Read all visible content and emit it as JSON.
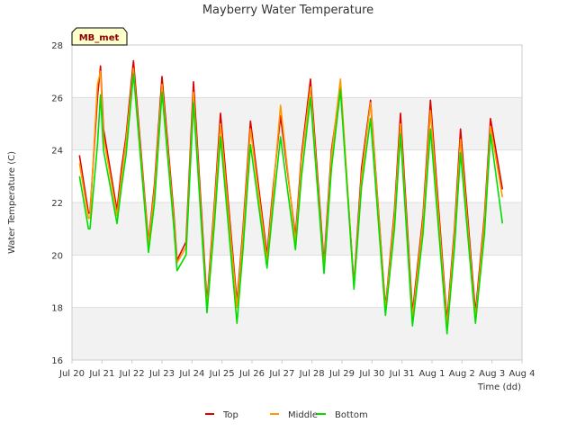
{
  "chart_data": {
    "type": "line",
    "title": "Mayberry Water Temperature",
    "xlabel": "Time (dd)",
    "ylabel": "Water Temperature (C)",
    "site_label": "MB_met",
    "xlim": [
      0,
      15
    ],
    "ylim": [
      16,
      28
    ],
    "grid": true,
    "legend_position": "bottom",
    "x_ticks": [
      {
        "x": 0,
        "label": "Jul 20"
      },
      {
        "x": 1,
        "label": "Jul 21"
      },
      {
        "x": 2,
        "label": "Jul 22"
      },
      {
        "x": 3,
        "label": "Jul 23"
      },
      {
        "x": 4,
        "label": "Jul 24"
      },
      {
        "x": 5,
        "label": "Jul 25"
      },
      {
        "x": 6,
        "label": "Jul 26"
      },
      {
        "x": 7,
        "label": "Jul 27"
      },
      {
        "x": 8,
        "label": "Jul 28"
      },
      {
        "x": 9,
        "label": "Jul 29"
      },
      {
        "x": 10,
        "label": "Jul 30"
      },
      {
        "x": 11,
        "label": "Jul 31"
      },
      {
        "x": 12,
        "label": "Aug 1"
      },
      {
        "x": 13,
        "label": "Aug 2"
      },
      {
        "x": 14,
        "label": "Aug 3"
      },
      {
        "x": 15,
        "label": "Aug 4"
      }
    ],
    "y_ticks": [
      16,
      18,
      20,
      22,
      24,
      26,
      28
    ],
    "series": [
      {
        "name": "Top",
        "color": "#dd0000",
        "x": [
          0.25,
          0.55,
          0.6,
          0.85,
          0.95,
          1.05,
          1.5,
          1.65,
          1.8,
          2.05,
          2.55,
          2.75,
          3.0,
          3.4,
          3.5,
          3.8,
          4.05,
          4.5,
          4.75,
          4.95,
          5.5,
          5.7,
          5.95,
          6.5,
          6.7,
          6.95,
          7.45,
          7.65,
          7.95,
          8.4,
          8.65,
          8.95,
          9.4,
          9.65,
          9.95,
          10.45,
          10.75,
          10.95,
          11.35,
          11.7,
          11.95,
          12.5,
          12.75,
          12.95,
          13.45,
          13.75,
          13.95,
          14.35
        ],
        "y": [
          23.8,
          21.6,
          21.6,
          26.0,
          27.2,
          24.8,
          21.7,
          23.3,
          24.5,
          27.4,
          20.5,
          22.7,
          26.8,
          21.5,
          19.8,
          20.5,
          26.6,
          18.2,
          22.0,
          25.4,
          18.2,
          21.0,
          25.1,
          20.0,
          22.5,
          25.3,
          20.7,
          23.8,
          26.7,
          19.7,
          24.0,
          26.4,
          18.9,
          23.3,
          25.9,
          18.0,
          21.7,
          25.4,
          17.8,
          21.5,
          25.9,
          17.5,
          21.0,
          24.8,
          17.8,
          21.5,
          25.2,
          22.5
        ]
      },
      {
        "name": "Middle",
        "color": "#ff9900",
        "x": [
          0.25,
          0.55,
          0.6,
          0.85,
          0.95,
          1.05,
          1.5,
          1.65,
          1.8,
          2.05,
          2.55,
          2.75,
          3.0,
          3.4,
          3.5,
          3.8,
          4.05,
          4.5,
          4.75,
          4.95,
          5.5,
          5.7,
          5.95,
          6.5,
          6.7,
          6.95,
          7.45,
          7.65,
          7.95,
          8.4,
          8.65,
          8.95,
          9.4,
          9.65,
          9.95,
          10.45,
          10.75,
          10.95,
          11.35,
          11.7,
          11.95,
          12.5,
          12.75,
          12.95,
          13.45,
          13.75,
          13.95,
          14.35
        ],
        "y": [
          23.5,
          21.4,
          21.4,
          26.5,
          27.0,
          24.5,
          21.5,
          23.0,
          24.3,
          27.1,
          20.4,
          22.5,
          26.5,
          21.3,
          19.7,
          20.3,
          26.2,
          18.0,
          21.8,
          25.0,
          18.0,
          20.8,
          24.8,
          19.8,
          22.3,
          25.7,
          20.5,
          23.6,
          26.4,
          19.5,
          23.8,
          26.7,
          18.8,
          23.0,
          25.8,
          17.9,
          21.5,
          25.0,
          17.6,
          21.3,
          25.5,
          17.3,
          20.8,
          24.4,
          17.6,
          21.3,
          24.9,
          22.2
        ]
      },
      {
        "name": "Bottom",
        "color": "#00dd00",
        "x": [
          0.25,
          0.55,
          0.6,
          0.85,
          0.95,
          1.05,
          1.5,
          1.65,
          1.8,
          2.05,
          2.55,
          2.75,
          3.0,
          3.4,
          3.5,
          3.8,
          4.05,
          4.5,
          4.75,
          4.95,
          5.5,
          5.7,
          5.95,
          6.5,
          6.7,
          6.95,
          7.45,
          7.65,
          7.95,
          8.4,
          8.65,
          8.95,
          9.4,
          9.65,
          9.95,
          10.45,
          10.75,
          10.95,
          11.35,
          11.7,
          11.95,
          12.5,
          12.75,
          12.95,
          13.45,
          13.75,
          13.95,
          14.35
        ],
        "y": [
          23.0,
          21.0,
          21.0,
          24.2,
          26.1,
          24.0,
          21.2,
          22.6,
          23.8,
          26.9,
          20.1,
          22.0,
          26.2,
          21.0,
          19.4,
          20.0,
          25.8,
          17.8,
          21.2,
          24.5,
          17.4,
          20.2,
          24.2,
          19.5,
          21.8,
          24.5,
          20.2,
          23.0,
          26.0,
          19.3,
          23.3,
          26.3,
          18.7,
          22.6,
          25.2,
          17.7,
          21.0,
          24.6,
          17.3,
          20.8,
          24.8,
          17.0,
          20.3,
          23.9,
          17.4,
          20.8,
          24.6,
          21.2
        ]
      }
    ]
  }
}
